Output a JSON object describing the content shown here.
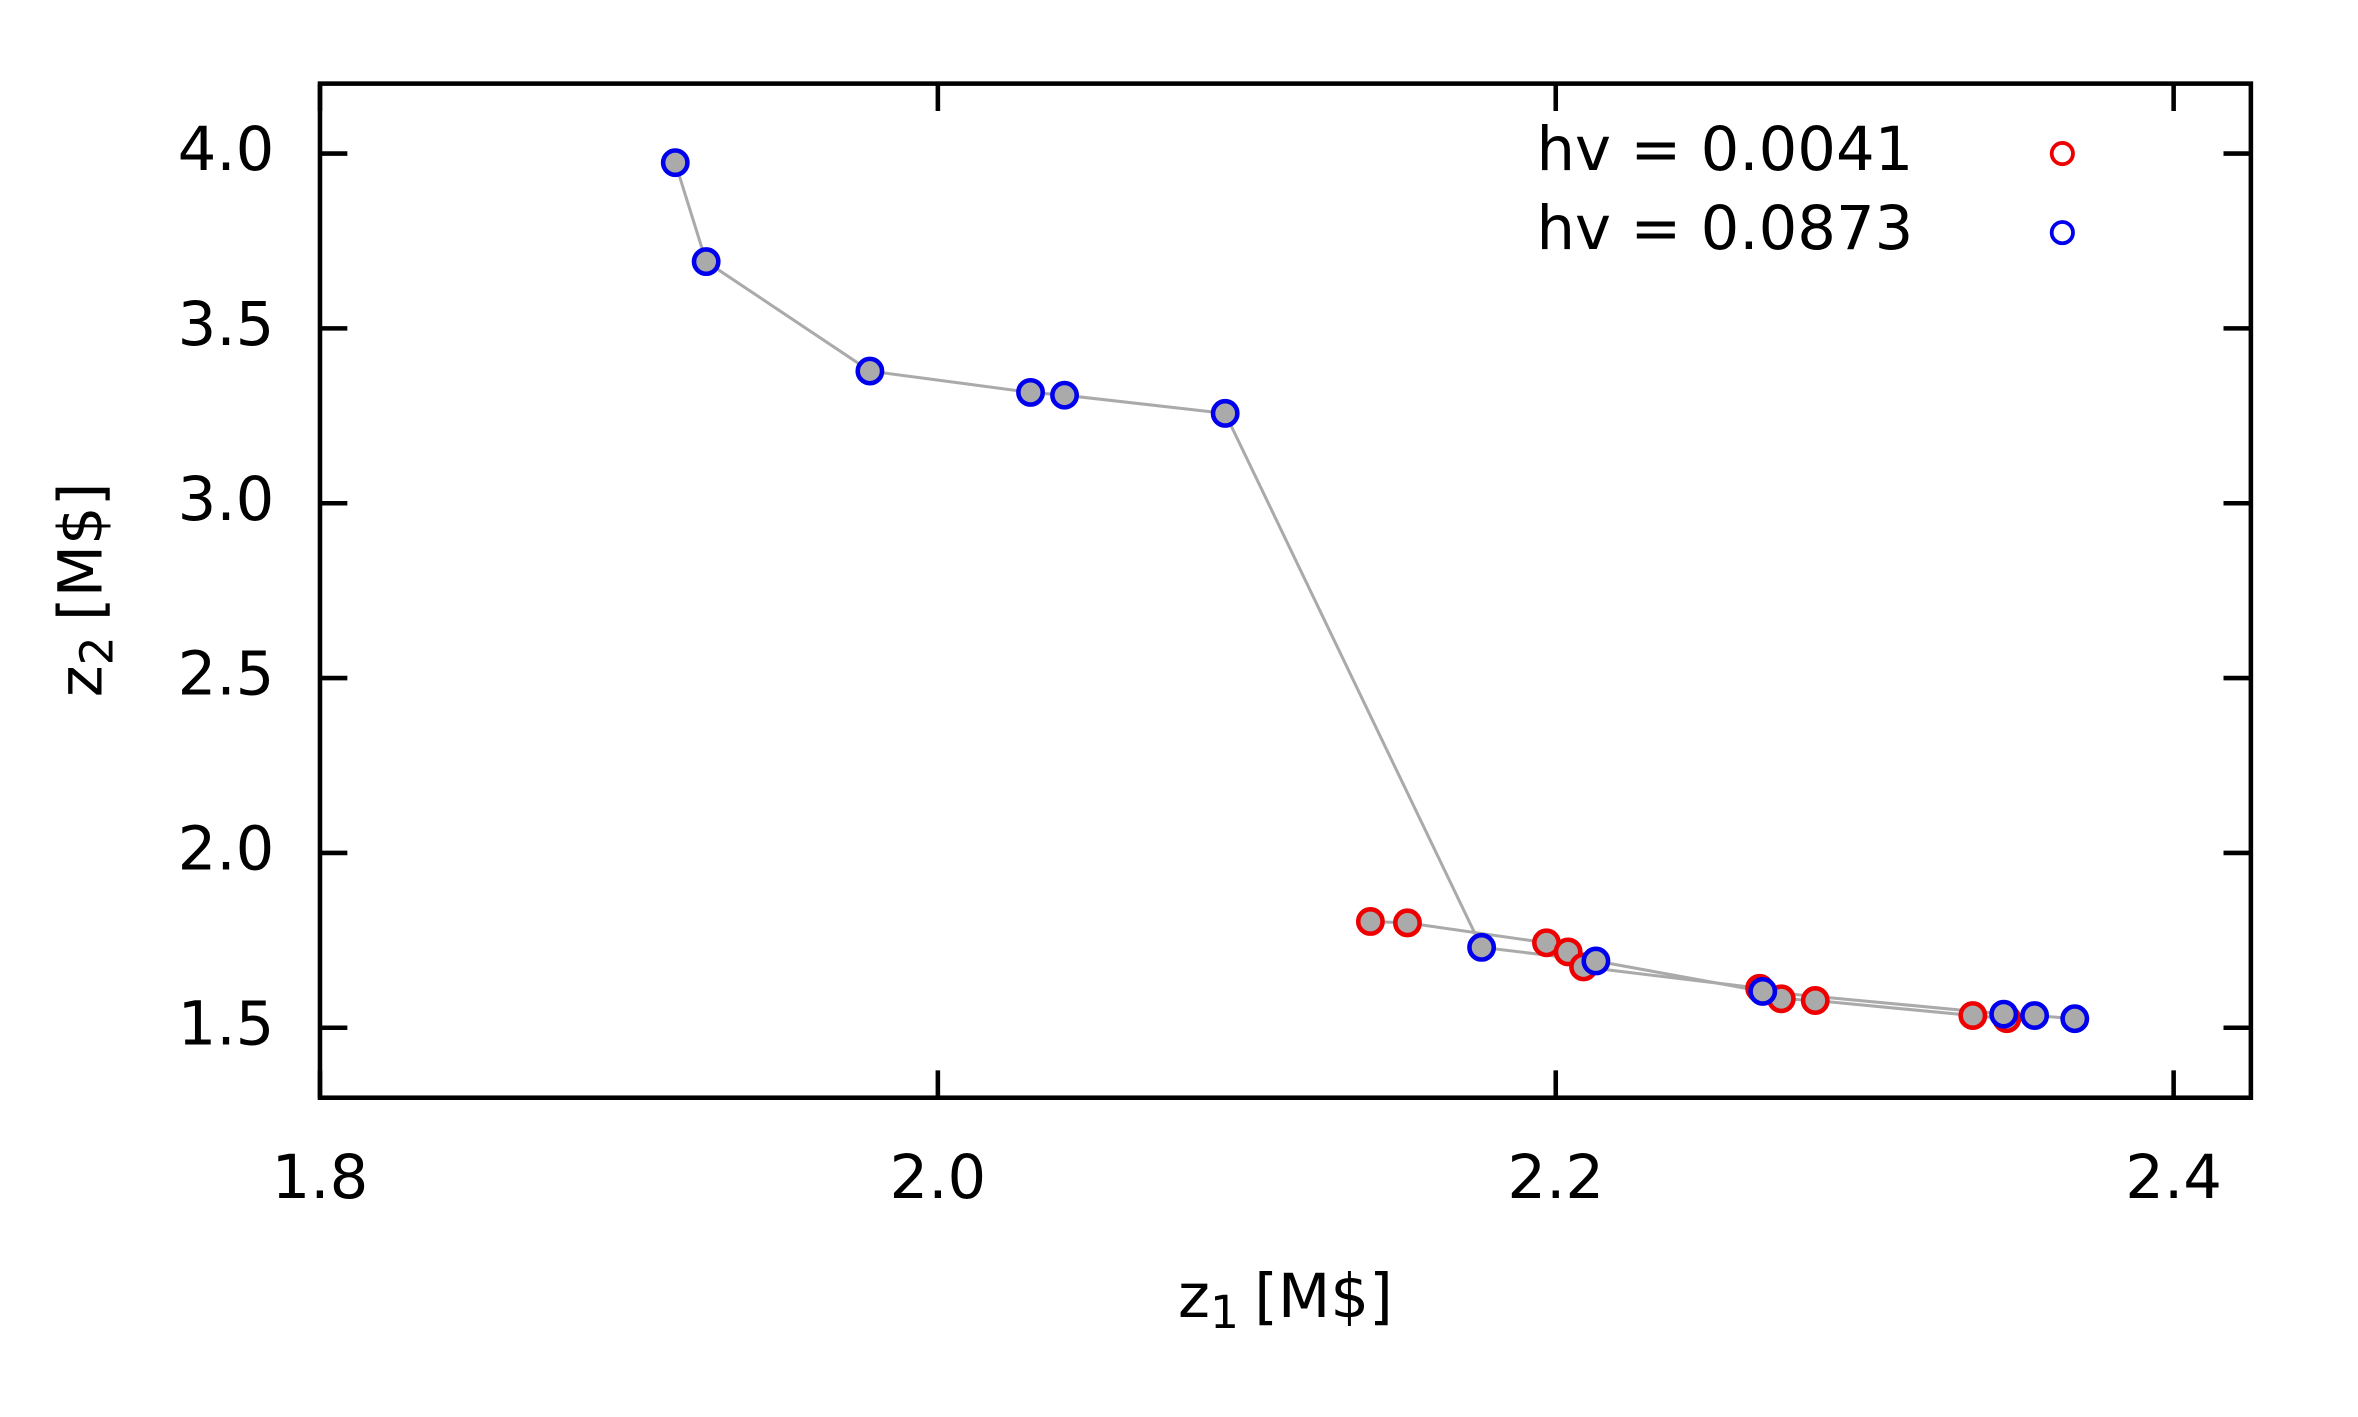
{
  "chart_data": {
    "type": "scatter",
    "xlabel": {
      "symbol": "z",
      "subscript": "1",
      "unit": "[M$]"
    },
    "ylabel": {
      "symbol": "z",
      "subscript": "2",
      "unit": "[M$]"
    },
    "xlim": [
      1.8,
      2.425
    ],
    "ylim": [
      1.3,
      4.2
    ],
    "xticks": [
      1.8,
      {
        "value": 2,
        "label": "2.0"
      },
      2.2,
      2.4
    ],
    "yticks": [
      1.5,
      {
        "value": 2,
        "label": "2.0"
      },
      2.5,
      {
        "value": 3,
        "label": "3.0"
      },
      3.5,
      {
        "value": 4,
        "label": "4.0"
      }
    ],
    "grid": false,
    "legend": "upper right",
    "line_color": "#aaaaaa",
    "marker_fill": "#aaaaaa",
    "series": [
      {
        "name": "hv = 0.0041",
        "color": "#ee0000",
        "x": [
          2.14,
          2.152,
          2.197,
          2.204,
          2.209,
          2.266,
          2.273,
          2.284,
          2.335,
          2.346
        ],
        "values": [
          1.804,
          1.8,
          1.743,
          1.717,
          1.674,
          1.613,
          1.583,
          1.578,
          1.535,
          1.526
        ]
      },
      {
        "name": "hv = 0.0873",
        "color": "#0000ee",
        "x": [
          1.915,
          1.925,
          1.978,
          2.03,
          2.041,
          2.093,
          2.176,
          2.213,
          2.267,
          2.345,
          2.355,
          2.368
        ],
        "values": [
          3.974,
          3.691,
          3.378,
          3.317,
          3.309,
          3.257,
          1.73,
          1.691,
          1.604,
          1.539,
          1.535,
          1.526
        ]
      }
    ]
  }
}
